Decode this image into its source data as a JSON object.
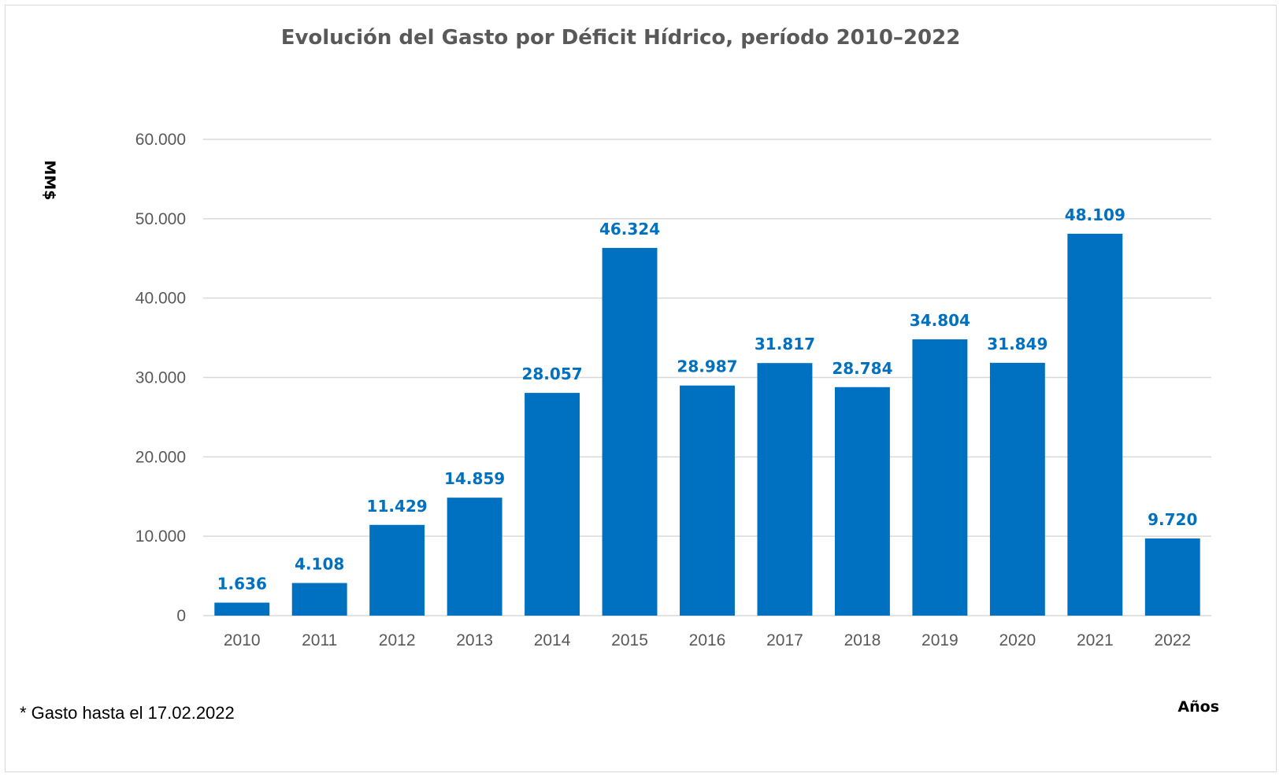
{
  "chart_data": {
    "type": "bar",
    "title": "Evolución del Gasto por Déficit Hídrico, período  2010–2022",
    "ylabel": "MM$",
    "xlabel": "Años",
    "footnote": "* Gasto hasta el 17.02.2022",
    "categories": [
      "2010",
      "2011",
      "2012",
      "2013",
      "2014",
      "2015",
      "2016",
      "2017",
      "2018",
      "2019",
      "2020",
      "2021",
      "2022"
    ],
    "values": [
      1636,
      4108,
      11429,
      14859,
      28057,
      46324,
      28987,
      31817,
      28784,
      34804,
      31849,
      48109,
      9720
    ],
    "value_labels": [
      "1.636",
      "4.108",
      "11.429",
      "14.859",
      "28.057",
      "46.324",
      "28.987",
      "31.817",
      "28.784",
      "34.804",
      "31.849",
      "48.109",
      "9.720"
    ],
    "ylim": [
      0,
      60000
    ],
    "yticks": [
      0,
      10000,
      20000,
      30000,
      40000,
      50000,
      60000
    ],
    "ytick_labels": [
      "0",
      "10.000",
      "20.000",
      "30.000",
      "40.000",
      "50.000",
      "60.000"
    ],
    "grid": true,
    "bar_color": "#0070c0",
    "label_color": "#0070c0"
  }
}
